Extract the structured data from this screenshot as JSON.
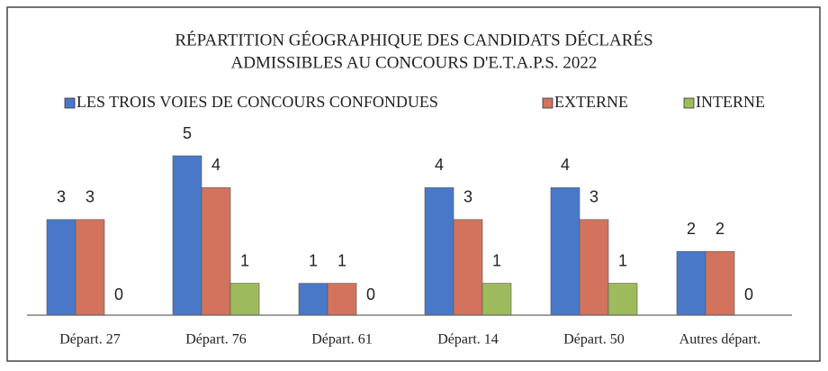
{
  "chart_data": {
    "type": "bar",
    "title": [
      "RÉPARTITION GÉOGRAPHIQUE DES CANDIDATS DÉCLARÉS",
      "ADMISSIBLES AU CONCOURS D'E.T.A.P.S. 2022"
    ],
    "categories": [
      "Départ. 27",
      "Départ. 76",
      "Départ. 61",
      "Départ. 14",
      "Départ. 50",
      "Autres départ."
    ],
    "series": [
      {
        "name": "LES TROIS VOIES DE CONCOURS CONFONDUES",
        "color": "#4a78c8",
        "values": [
          3,
          5,
          1,
          4,
          4,
          2
        ]
      },
      {
        "name": "EXTERNE",
        "color": "#d2735e",
        "values": [
          3,
          4,
          1,
          3,
          3,
          2
        ]
      },
      {
        "name": "INTERNE",
        "color": "#9dbb5c",
        "values": [
          0,
          1,
          0,
          1,
          1,
          0
        ]
      }
    ],
    "legend": "top"
  }
}
